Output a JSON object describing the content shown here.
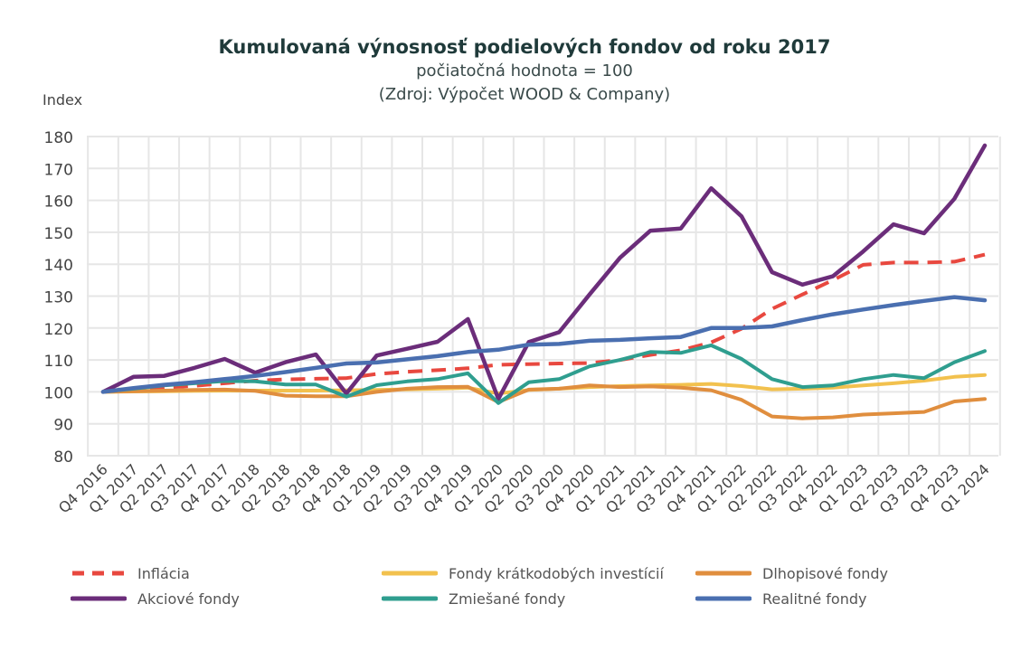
{
  "chart_data": {
    "type": "line",
    "title": "Kumulovaná výnosnosť podielových fondov od roku 2017",
    "subtitle": "počiatočná hodnota = 100",
    "source": "(Zdroj: Výpočet WOOD & Company)",
    "ylabel": "Index",
    "xlabel": "",
    "ylim": [
      80,
      180
    ],
    "yticks": [
      80,
      90,
      100,
      110,
      120,
      130,
      140,
      150,
      160,
      170,
      180
    ],
    "grid": true,
    "legend_position": "bottom",
    "categories": [
      "Q4 2016",
      "Q1 2017",
      "Q2 2017",
      "Q3 2017",
      "Q4 2017",
      "Q1 2018",
      "Q2 2018",
      "Q3 2018",
      "Q4 2018",
      "Q1 2019",
      "Q2 2019",
      "Q3 2019",
      "Q4 2019",
      "Q1 2020",
      "Q2 2020",
      "Q3 2020",
      "Q4 2020",
      "Q1 2021",
      "Q2 2021",
      "Q3 2021",
      "Q4 2021",
      "Q1 2022",
      "Q2 2022",
      "Q3 2022",
      "Q4 2022",
      "Q1 2023",
      "Q2 2023",
      "Q3 2023",
      "Q4 2023",
      "Q1 2024"
    ],
    "series": [
      {
        "name": "Inflácia",
        "color": "#e8483f",
        "dashed": true,
        "width": 4,
        "values": [
          100,
          100.7,
          101.3,
          101.9,
          102.7,
          103.5,
          103.9,
          104.1,
          104.3,
          105.6,
          106.3,
          106.8,
          107.4,
          108.5,
          108.7,
          108.9,
          109.0,
          110.0,
          111.6,
          113.0,
          115.5,
          119.8,
          126.0,
          130.5,
          135.0,
          139.8,
          140.5,
          140.5,
          140.8,
          143.0
        ]
      },
      {
        "name": "Fondy krátkodobých investícií",
        "color": "#f2c14e",
        "dashed": false,
        "width": 4,
        "values": [
          100,
          100.1,
          100.2,
          100.3,
          100.4,
          100.4,
          100.4,
          100.4,
          100.5,
          100.6,
          100.8,
          101.0,
          101.3,
          99.5,
          100.6,
          101.0,
          101.5,
          101.8,
          102.0,
          102.2,
          102.5,
          101.8,
          100.8,
          101.0,
          101.3,
          102.0,
          102.7,
          103.5,
          104.7,
          105.3
        ]
      },
      {
        "name": "Dlhopisové fondy",
        "color": "#e08e3e",
        "dashed": false,
        "width": 4,
        "values": [
          100,
          100.2,
          100.4,
          100.6,
          100.7,
          100.3,
          98.8,
          98.6,
          98.6,
          100.0,
          101.0,
          101.5,
          101.6,
          96.8,
          100.7,
          101.0,
          102.0,
          101.5,
          101.7,
          101.3,
          100.5,
          97.5,
          92.3,
          91.7,
          92.0,
          92.9,
          93.3,
          93.7,
          97.0,
          97.8
        ]
      },
      {
        "name": "Akciové fondy",
        "color": "#6b2d7a",
        "dashed": false,
        "width": 4.5,
        "values": [
          100,
          104.7,
          105.0,
          107.5,
          110.3,
          106.0,
          109.3,
          111.7,
          99.5,
          111.4,
          113.5,
          115.7,
          122.8,
          97.8,
          115.6,
          118.7,
          130.5,
          142.0,
          150.5,
          151.2,
          163.8,
          155.0,
          137.5,
          133.6,
          136.2,
          144.0,
          152.5,
          149.7,
          160.5,
          177.2
        ]
      },
      {
        "name": "Zmiešané fondy",
        "color": "#2f9e8f",
        "dashed": false,
        "width": 4,
        "values": [
          100,
          101.0,
          102.0,
          102.7,
          103.4,
          103.3,
          102.3,
          102.3,
          98.5,
          102.1,
          103.3,
          104.0,
          105.8,
          96.5,
          103.0,
          104.0,
          108.0,
          110.0,
          112.5,
          112.2,
          114.6,
          110.3,
          104.0,
          101.5,
          102.0,
          104.0,
          105.3,
          104.3,
          109.3,
          112.8
        ]
      },
      {
        "name": "Realitné fondy",
        "color": "#4a6fb0",
        "dashed": false,
        "width": 4.5,
        "values": [
          100,
          101.2,
          102.2,
          103.0,
          104.0,
          105.0,
          106.2,
          107.5,
          108.9,
          109.2,
          110.2,
          111.2,
          112.5,
          113.2,
          114.8,
          115.0,
          116.0,
          116.3,
          116.8,
          117.2,
          120.0,
          120.0,
          120.5,
          122.5,
          124.3,
          125.8,
          127.2,
          128.5,
          129.7,
          128.7
        ]
      }
    ]
  }
}
